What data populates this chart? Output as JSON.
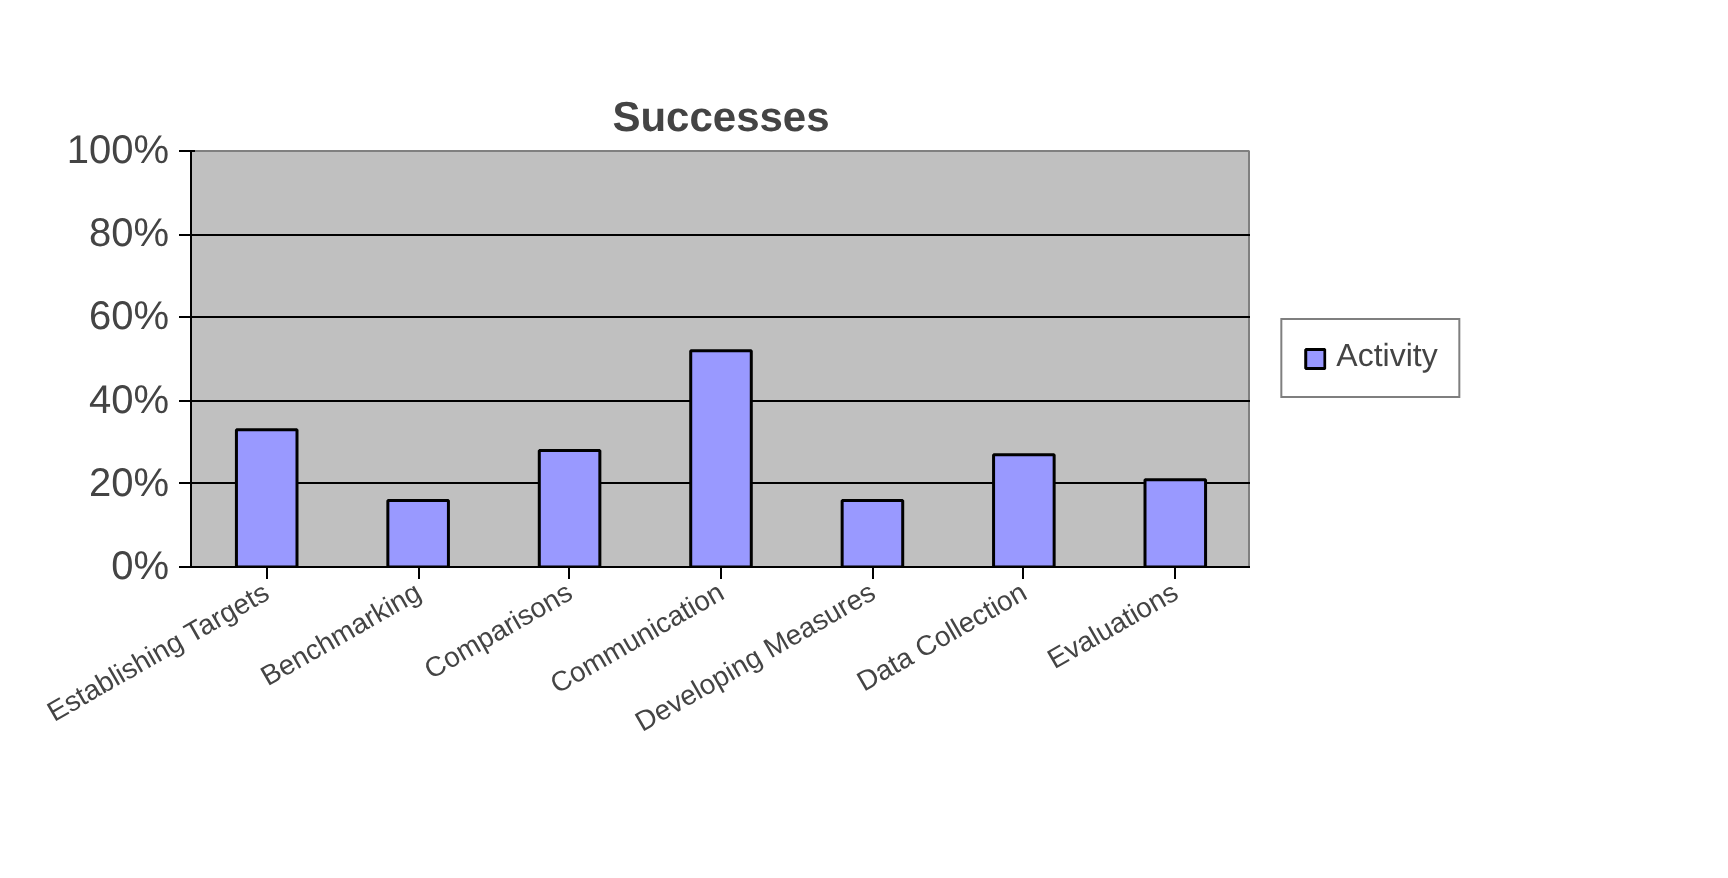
{
  "chart_data": {
    "type": "bar",
    "title": "Successes",
    "categories": [
      "Establishing Targets",
      "Benchmarking",
      "Comparisons",
      "Communication",
      "Developing Measures",
      "Data Collection",
      "Evaluations"
    ],
    "series": [
      {
        "name": "Activity",
        "color": "#9999ff",
        "values": [
          33,
          16,
          28,
          52,
          16,
          27,
          21
        ]
      }
    ],
    "ylim": [
      0,
      100
    ],
    "yticks": [
      {
        "value": 0,
        "label": "0%"
      },
      {
        "value": 20,
        "label": "20%"
      },
      {
        "value": 40,
        "label": "40%"
      },
      {
        "value": 60,
        "label": "60%"
      },
      {
        "value": 80,
        "label": "80%"
      },
      {
        "value": 100,
        "label": "100%"
      }
    ],
    "grid": "y",
    "legend": "right"
  }
}
